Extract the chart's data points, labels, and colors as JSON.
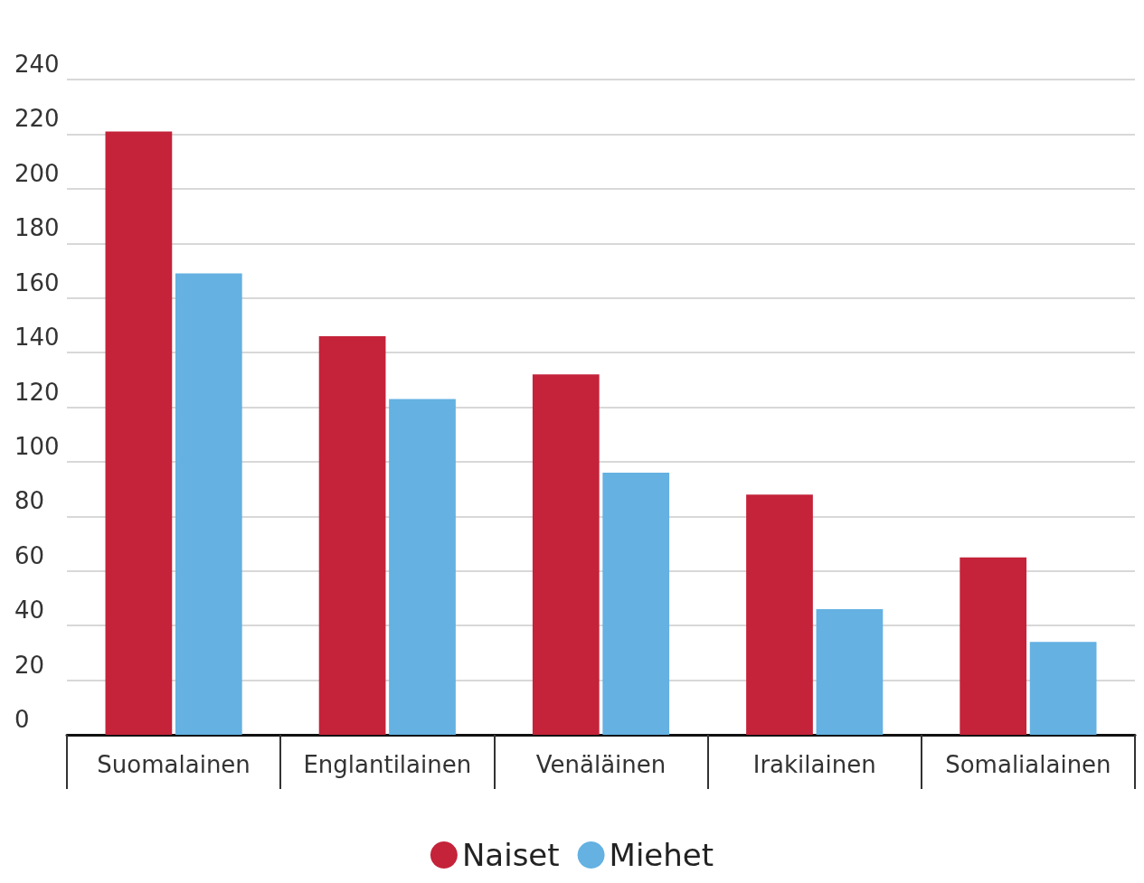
{
  "chart_data": {
    "type": "bar",
    "categories": [
      "Suomalainen",
      "Englantilainen",
      "Venäläinen",
      "Irakilainen",
      "Somalialainen"
    ],
    "series": [
      {
        "name": "Naiset",
        "color": "#c4233a",
        "values": [
          221,
          146,
          132,
          88,
          65
        ]
      },
      {
        "name": "Miehet",
        "color": "#64b1e2",
        "values": [
          169,
          123,
          96,
          46,
          34
        ]
      }
    ],
    "ylim": [
      0,
      240
    ],
    "yticks": [
      0,
      20,
      40,
      60,
      80,
      100,
      120,
      140,
      160,
      180,
      200,
      220,
      240
    ],
    "grid": "y",
    "legend": "bottom"
  }
}
